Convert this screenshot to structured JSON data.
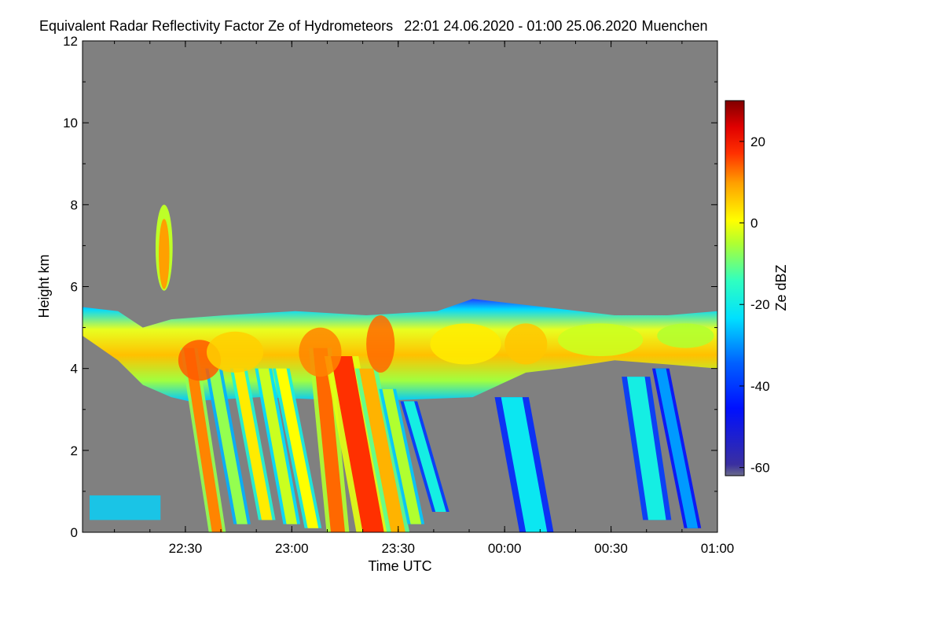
{
  "chart_data": {
    "type": "heatmap",
    "title": "Equivalent Radar Reflectivity Factor Ze of Hydrometeors",
    "time_range": "22:01 24.06.2020 - 01:00 25.06.2020",
    "location": "Muenchen",
    "xlabel": "Time UTC",
    "ylabel": "Height km",
    "x_range_minutes_after_2201": [
      0,
      179
    ],
    "x_ticks": [
      {
        "label": "22:30",
        "minutes": 29
      },
      {
        "label": "23:00",
        "minutes": 59
      },
      {
        "label": "23:30",
        "minutes": 89
      },
      {
        "label": "00:00",
        "minutes": 119
      },
      {
        "label": "00:30",
        "minutes": 149
      },
      {
        "label": "01:00",
        "minutes": 179
      }
    ],
    "y_range_km": [
      0,
      12
    ],
    "y_ticks": [
      {
        "label": "0",
        "value": 0
      },
      {
        "label": "2",
        "value": 2
      },
      {
        "label": "4",
        "value": 4
      },
      {
        "label": "6",
        "value": 6
      },
      {
        "label": "8",
        "value": 8
      },
      {
        "label": "10",
        "value": 10
      },
      {
        "label": "12",
        "value": 12
      }
    ],
    "colorbar": {
      "label": "Ze dBZ",
      "range_dbz": [
        -62,
        30
      ],
      "ticks": [
        {
          "label": "20",
          "value": 20
        },
        {
          "label": "0",
          "value": 0
        },
        {
          "label": "-20",
          "value": -20
        },
        {
          "label": "-40",
          "value": -40
        },
        {
          "label": "-60",
          "value": -60
        }
      ]
    },
    "background_color": "#808080",
    "layer_top_km": [
      {
        "t": 0,
        "h": 5.5
      },
      {
        "t": 10,
        "h": 5.4
      },
      {
        "t": 17,
        "h": 5.0
      },
      {
        "t": 25,
        "h": 5.2
      },
      {
        "t": 40,
        "h": 5.3
      },
      {
        "t": 60,
        "h": 5.4
      },
      {
        "t": 80,
        "h": 5.3
      },
      {
        "t": 100,
        "h": 5.4
      },
      {
        "t": 110,
        "h": 5.7
      },
      {
        "t": 130,
        "h": 5.5
      },
      {
        "t": 150,
        "h": 5.3
      },
      {
        "t": 165,
        "h": 5.3
      },
      {
        "t": 179,
        "h": 5.4
      }
    ],
    "layer_bottom_km": [
      {
        "t": 0,
        "h": 4.8
      },
      {
        "t": 10,
        "h": 4.2
      },
      {
        "t": 17,
        "h": 3.6
      },
      {
        "t": 25,
        "h": 3.3
      },
      {
        "t": 30,
        "h": 3.2
      },
      {
        "t": 50,
        "h": 3.3
      },
      {
        "t": 80,
        "h": 3.2
      },
      {
        "t": 110,
        "h": 3.3
      },
      {
        "t": 125,
        "h": 3.9
      },
      {
        "t": 135,
        "h": 4.0
      },
      {
        "t": 150,
        "h": 4.2
      },
      {
        "t": 165,
        "h": 4.1
      },
      {
        "t": 179,
        "h": 4.0
      }
    ],
    "fallstreaks": [
      {
        "t_top": 30,
        "t_bottom": 38,
        "h_top": 4.5,
        "h_bottom": 0,
        "dbz": 12,
        "width_min": 3
      },
      {
        "t_top": 37,
        "t_bottom": 45,
        "h_top": 4.0,
        "h_bottom": 0.2,
        "dbz": -8,
        "width_min": 3
      },
      {
        "t_top": 44,
        "t_bottom": 52,
        "h_top": 4.0,
        "h_bottom": 0.3,
        "dbz": 2,
        "width_min": 3
      },
      {
        "t_top": 51,
        "t_bottom": 59,
        "h_top": 4.0,
        "h_bottom": 0.2,
        "dbz": -4,
        "width_min": 3
      },
      {
        "t_top": 56,
        "t_bottom": 65,
        "h_top": 4.0,
        "h_bottom": 0.1,
        "dbz": 0,
        "width_min": 3
      },
      {
        "t_top": 67,
        "t_bottom": 72,
        "h_top": 4.5,
        "h_bottom": 0,
        "dbz": 14,
        "width_min": 4
      },
      {
        "t_top": 73,
        "t_bottom": 82,
        "h_top": 4.3,
        "h_bottom": 0,
        "dbz": 18,
        "width_min": 6
      },
      {
        "t_top": 80,
        "t_bottom": 89,
        "h_top": 4.0,
        "h_bottom": 0,
        "dbz": 8,
        "width_min": 4
      },
      {
        "t_top": 86,
        "t_bottom": 94,
        "h_top": 3.5,
        "h_bottom": 0.2,
        "dbz": -6,
        "width_min": 3
      },
      {
        "t_top": 92,
        "t_bottom": 101,
        "h_top": 3.2,
        "h_bottom": 0.5,
        "dbz": -20,
        "width_min": 3
      },
      {
        "t_top": 121,
        "t_bottom": 128,
        "h_top": 3.3,
        "h_bottom": 0,
        "dbz": -22,
        "width_min": 6
      },
      {
        "t_top": 156,
        "t_bottom": 162,
        "h_top": 3.8,
        "h_bottom": 0.3,
        "dbz": -20,
        "width_min": 5
      },
      {
        "t_top": 163,
        "t_bottom": 172,
        "h_top": 4.0,
        "h_bottom": 0.1,
        "dbz": -30,
        "width_min": 3
      }
    ],
    "layer_cores": [
      {
        "t": 33,
        "h": 4.2,
        "dbz": 15,
        "rx_min": 6,
        "ry_km": 0.5
      },
      {
        "t": 43,
        "h": 4.4,
        "dbz": 5,
        "rx_min": 8,
        "ry_km": 0.5
      },
      {
        "t": 67,
        "h": 4.4,
        "dbz": 12,
        "rx_min": 6,
        "ry_km": 0.6
      },
      {
        "t": 84,
        "h": 4.6,
        "dbz": 14,
        "rx_min": 4,
        "ry_km": 0.7
      },
      {
        "t": 108,
        "h": 4.6,
        "dbz": 2,
        "rx_min": 10,
        "ry_km": 0.5
      },
      {
        "t": 125,
        "h": 4.6,
        "dbz": 6,
        "rx_min": 6,
        "ry_km": 0.5
      },
      {
        "t": 146,
        "h": 4.7,
        "dbz": -4,
        "rx_min": 12,
        "ry_km": 0.4
      },
      {
        "t": 170,
        "h": 4.8,
        "dbz": -6,
        "rx_min": 8,
        "ry_km": 0.3
      }
    ],
    "isolated_cell": {
      "t": 23,
      "h_bottom": 5.9,
      "h_top": 8.0,
      "dbz": 10
    },
    "surface_clutter": [
      {
        "t_start": 2,
        "t_end": 22,
        "h_bottom": 0.3,
        "h_top": 0.9,
        "dbz": -25
      }
    ]
  }
}
